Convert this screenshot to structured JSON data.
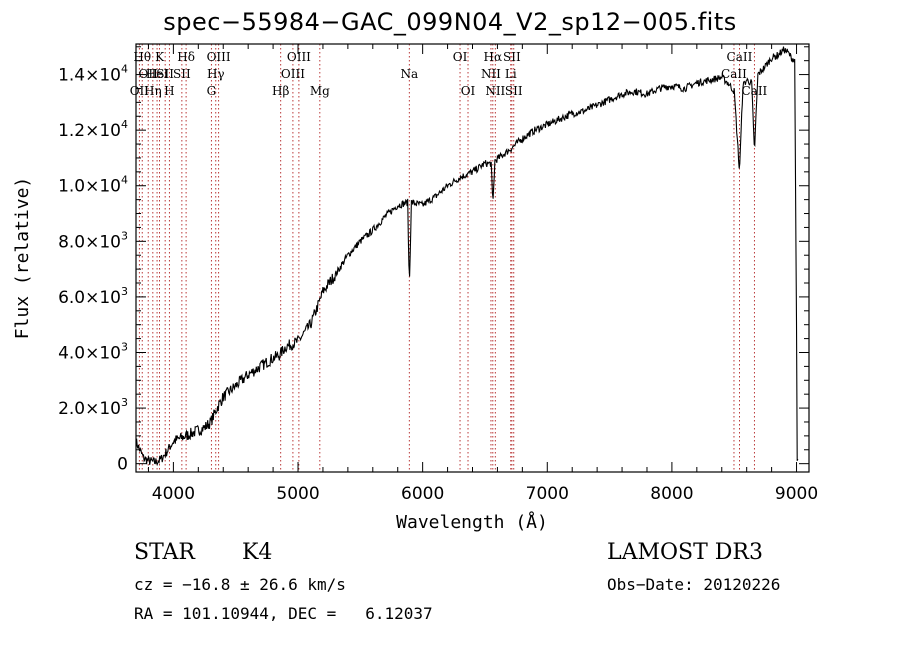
{
  "chart_data": {
    "type": "line",
    "title": "spec−55984−GAC_099N04_V2_sp12−005.fits",
    "xlabel": "Wavelength (Å)",
    "ylabel": "Flux (relative)",
    "xlim": [
      3700,
      9100
    ],
    "ylim": [
      -300,
      15100
    ],
    "x_ticks": [
      {
        "value": 4000,
        "label": "4000"
      },
      {
        "value": 5000,
        "label": "5000"
      },
      {
        "value": 6000,
        "label": "6000"
      },
      {
        "value": 7000,
        "label": "7000"
      },
      {
        "value": 8000,
        "label": "8000"
      },
      {
        "value": 9000,
        "label": "9000"
      }
    ],
    "y_ticks": [
      {
        "value": 0,
        "label": "0"
      },
      {
        "value": 2000,
        "label": "2.0×10",
        "exp": "3"
      },
      {
        "value": 4000,
        "label": "4.0×10",
        "exp": "3"
      },
      {
        "value": 6000,
        "label": "6.0×10",
        "exp": "3"
      },
      {
        "value": 8000,
        "label": "8.0×10",
        "exp": "3"
      },
      {
        "value": 10000,
        "label": "1.0×10",
        "exp": "4"
      },
      {
        "value": 12000,
        "label": "1.2×10",
        "exp": "4"
      },
      {
        "value": 14000,
        "label": "1.4×10",
        "exp": "4"
      }
    ],
    "series": [
      {
        "name": "spectrum",
        "x": [
          3700,
          3730,
          3760,
          3800,
          3850,
          3900,
          3950,
          4000,
          4050,
          4100,
          4150,
          4200,
          4250,
          4300,
          4330,
          4350,
          4400,
          4500,
          4600,
          4700,
          4800,
          4850,
          4900,
          4950,
          5000,
          5100,
          5170,
          5200,
          5300,
          5400,
          5500,
          5600,
          5700,
          5800,
          5880,
          5893,
          5910,
          6000,
          6100,
          6200,
          6300,
          6400,
          6500,
          6550,
          6563,
          6580,
          6700,
          6800,
          6900,
          7000,
          7100,
          7200,
          7300,
          7400,
          7500,
          7600,
          7700,
          7800,
          7900,
          8000,
          8100,
          8200,
          8300,
          8400,
          8450,
          8500,
          8542,
          8570,
          8600,
          8640,
          8662,
          8690,
          8750,
          8800,
          8850,
          8900,
          8930,
          8960,
          8985,
          9000,
          9005,
          9010
        ],
        "y": [
          800,
          500,
          200,
          100,
          50,
          150,
          450,
          800,
          900,
          1000,
          1100,
          1200,
          1300,
          1500,
          1800,
          2000,
          2400,
          2800,
          3200,
          3500,
          3800,
          3900,
          4200,
          4300,
          4400,
          5000,
          5800,
          6200,
          6800,
          7500,
          8000,
          8400,
          8900,
          9300,
          9400,
          6400,
          9400,
          9300,
          9600,
          10000,
          10300,
          10500,
          10800,
          10800,
          9300,
          10900,
          11300,
          11700,
          12000,
          12200,
          12400,
          12600,
          12700,
          12900,
          13100,
          13300,
          13400,
          13300,
          13500,
          13600,
          13500,
          13700,
          13800,
          13900,
          13700,
          13400,
          10500,
          13600,
          13800,
          13700,
          11200,
          14000,
          14300,
          14600,
          14700,
          14900,
          14800,
          14600,
          14500,
          5000,
          0,
          100
        ]
      }
    ],
    "line_markers": [
      {
        "wavelength": 3727,
        "label": "OII",
        "row": 3
      },
      {
        "wavelength": 3750,
        "label": "Hθ",
        "row": 1
      },
      {
        "wavelength": 3798,
        "label": "OII",
        "row": 2
      },
      {
        "wavelength": 3835,
        "label": "Hη",
        "row": 3
      },
      {
        "wavelength": 3869,
        "label": "HeI",
        "row": 2
      },
      {
        "wavelength": 3889,
        "label": "K",
        "row": 1
      },
      {
        "wavelength": 3934,
        "label": "SII",
        "row": 2
      },
      {
        "wavelength": 3968,
        "label": "H",
        "row": 3
      },
      {
        "wavelength": 4102,
        "label": "Hδ",
        "row": 1
      },
      {
        "wavelength": 4068,
        "label": "SII",
        "row": 2
      },
      {
        "wavelength": 4305,
        "label": "G",
        "row": 3
      },
      {
        "wavelength": 4340,
        "label": "Hγ",
        "row": 2
      },
      {
        "wavelength": 4363,
        "label": "OIII",
        "row": 1
      },
      {
        "wavelength": 4861,
        "label": "Hβ",
        "row": 3
      },
      {
        "wavelength": 4959,
        "label": "OIII",
        "row": 2
      },
      {
        "wavelength": 5007,
        "label": "OIII",
        "row": 1
      },
      {
        "wavelength": 5175,
        "label": "Mg",
        "row": 3
      },
      {
        "wavelength": 5893,
        "label": "Na",
        "row": 2
      },
      {
        "wavelength": 6300,
        "label": "OI",
        "row": 1
      },
      {
        "wavelength": 6364,
        "label": "OI",
        "row": 3
      },
      {
        "wavelength": 6548,
        "label": "NII",
        "row": 2
      },
      {
        "wavelength": 6563,
        "label": "Hα",
        "row": 1
      },
      {
        "wavelength": 6583,
        "label": "NII",
        "row": 3
      },
      {
        "wavelength": 6707,
        "label": "Li",
        "row": 2
      },
      {
        "wavelength": 6716,
        "label": "SII",
        "row": 1
      },
      {
        "wavelength": 6731,
        "label": "SII",
        "row": 3
      },
      {
        "wavelength": 8498,
        "label": "CaII",
        "row": 2
      },
      {
        "wavelength": 8542,
        "label": "CaII",
        "row": 1
      },
      {
        "wavelength": 8662,
        "label": "CaII",
        "row": 3
      }
    ]
  },
  "info": {
    "class_label": "STAR",
    "subclass_label": "K4",
    "survey_label": "LAMOST DR3",
    "cz_text": "cz = −16.8 ± 26.6 km/s",
    "obs_date_text": "Obs−Date: 20120226",
    "radec_text": "RA = 101.10944, DEC =   6.12037"
  },
  "colors": {
    "spectrum": "#000000",
    "marker_line": "#b22222",
    "axis": "#000000"
  }
}
